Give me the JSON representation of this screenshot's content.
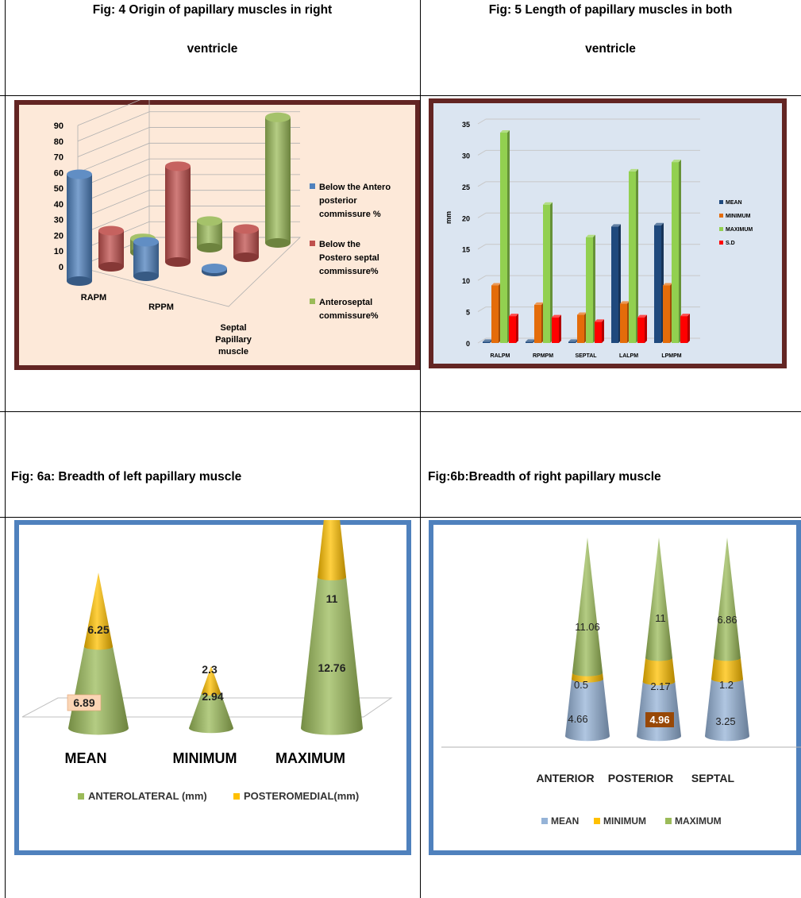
{
  "captions": {
    "fig4_line1": "Fig: 4 Origin of papillary muscles in right",
    "fig4_line2": "ventricle",
    "fig5_line1": "Fig: 5 Length of papillary muscles in both",
    "fig5_line2": "ventricle",
    "fig6a": "Fig: 6a: Breadth of left papillary muscle",
    "fig6b": "Fig:6b:Breadth of right  papillary muscle"
  },
  "colors": {
    "blue": "#4f81bd",
    "red": "#c0504d",
    "green": "#9bbb59",
    "navy": "#1f497d",
    "orange": "#e46c0a",
    "lightgreen": "#92d050",
    "brightred": "#ff0000",
    "yellow": "#ffc000",
    "lightblue": "#95b3d7",
    "frame_brown": "#632523",
    "frame_blue": "#4f81bd",
    "fig4_bg": "#fde9d9",
    "fig5_bg": "#dbe5f1"
  },
  "chart_data": [
    {
      "id": "fig4",
      "type": "bar",
      "categories": [
        "RAPM",
        "RPPM",
        "Septal Papillary muscle"
      ],
      "category_lines": [
        [
          "RAPM"
        ],
        [
          "RPPM"
        ],
        [
          "Septal",
          "Papillary",
          "muscle"
        ]
      ],
      "series": [
        {
          "name": "Below the Antero posterior commissure %",
          "legend_lines": [
            "Below the Antero",
            "posterior",
            "commissure %"
          ],
          "values": [
            68,
            22,
            2
          ]
        },
        {
          "name": "Below the Postero septal commissure%",
          "legend_lines": [
            "Below the",
            "Postero septal",
            "commissure%"
          ],
          "values": [
            23,
            61,
            18
          ]
        },
        {
          "name": "Anteroseptal commissure%",
          "legend_lines": [
            "Anteroseptal",
            "commissure%"
          ],
          "values": [
            9,
            17,
            80
          ]
        }
      ],
      "ylim": [
        0,
        90
      ],
      "yticks": [
        "0",
        "10",
        "20",
        "30",
        "40",
        "50",
        "60",
        "70",
        "80",
        "90"
      ],
      "legend_position": "right",
      "style": "3d cylinders"
    },
    {
      "id": "fig5",
      "type": "bar",
      "categories": [
        "RALPM",
        "RPMPM",
        "SEPTAL",
        "LALPM",
        "LPMPM"
      ],
      "series": [
        {
          "name": "MEAN",
          "values": [
            0.2,
            0.2,
            0.2,
            18.6,
            18.8
          ]
        },
        {
          "name": "MINIMUM",
          "values": [
            9.2,
            6.1,
            4.5,
            6.3,
            9.2
          ]
        },
        {
          "name": "MAXIMUM",
          "values": [
            33.6,
            22.1,
            16.9,
            27.4,
            28.9
          ]
        },
        {
          "name": "S.D",
          "values": [
            4.3,
            4.1,
            3.4,
            4.1,
            4.3
          ]
        }
      ],
      "ylabel": "mm",
      "ylim": [
        0,
        35
      ],
      "yticks": [
        "0",
        "5",
        "10",
        "15",
        "20",
        "25",
        "30",
        "35"
      ],
      "grid": true,
      "legend_position": "right"
    },
    {
      "id": "fig6a",
      "type": "bar",
      "style": "stacked cones",
      "categories": [
        "MEAN",
        "MINIMUM",
        "MAXIMUM"
      ],
      "series": [
        {
          "name": "ANTEROLATERAL (mm)",
          "values": [
            6.89,
            2.94,
            12.76
          ],
          "labels": [
            "6.89",
            "2.94",
            "12.76"
          ]
        },
        {
          "name": "POSTEROMEDIAL(mm)",
          "values": [
            6.25,
            2.3,
            11
          ],
          "labels": [
            "6.25",
            "2.3",
            "11"
          ]
        }
      ],
      "legend_position": "bottom"
    },
    {
      "id": "fig6b",
      "type": "bar",
      "style": "stacked cones",
      "categories": [
        "ANTERIOR",
        "POSTERIOR",
        "SEPTAL"
      ],
      "series": [
        {
          "name": "MEAN",
          "values": [
            4.66,
            4.96,
            3.25
          ],
          "labels": [
            "4.66",
            "4.96",
            "3.25"
          ]
        },
        {
          "name": "MINIMUM",
          "values": [
            0.5,
            2.17,
            1.2
          ],
          "labels": [
            "0.5",
            "2.17",
            "1.2"
          ]
        },
        {
          "name": "MAXIMUM",
          "values": [
            11.06,
            11,
            6.86
          ],
          "labels": [
            "11.06",
            "11",
            "6.86"
          ]
        }
      ],
      "legend_position": "bottom"
    }
  ]
}
